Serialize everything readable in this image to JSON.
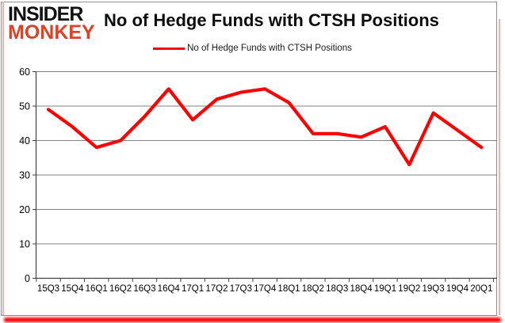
{
  "logo": {
    "line1": "INSIDER",
    "line2": "MONKEY",
    "line2_color": "#d8432c"
  },
  "title": "No of Hedge Funds with CTSH Positions",
  "legend": {
    "label": "No of Hedge Funds with CTSH Positions",
    "line_color": "#ff0000"
  },
  "colors": {
    "series_red": "#ff0000",
    "gridline_gray": "#808080",
    "axis_dark": "#404040",
    "border_gray": "#8e8e8e",
    "edge_pink": "#f3b0ab",
    "bottom_bar_red": "#fb0003",
    "background": "#ffffff",
    "text": "#000000"
  },
  "chart_data": {
    "type": "line",
    "title": "No of Hedge Funds with CTSH Positions",
    "categories": [
      "15Q3",
      "15Q4",
      "16Q1",
      "16Q2",
      "16Q3",
      "16Q4",
      "17Q1",
      "17Q2",
      "17Q3",
      "17Q4",
      "18Q1",
      "18Q2",
      "18Q3",
      "18Q4",
      "19Q1",
      "19Q2",
      "19Q3",
      "19Q4",
      "20Q1"
    ],
    "series": [
      {
        "name": "No of Hedge Funds with CTSH Positions",
        "color": "#ff0000",
        "values": [
          49,
          44,
          38,
          40,
          47,
          55,
          46,
          52,
          54,
          55,
          51,
          42,
          42,
          41,
          44,
          33,
          48,
          43,
          38
        ]
      }
    ],
    "xlabel": "",
    "ylabel": "",
    "ylim": [
      0,
      60
    ],
    "yticks": [
      0,
      10,
      20,
      30,
      40,
      50,
      60
    ],
    "grid": "horizontal",
    "legend_position": "top-center"
  }
}
